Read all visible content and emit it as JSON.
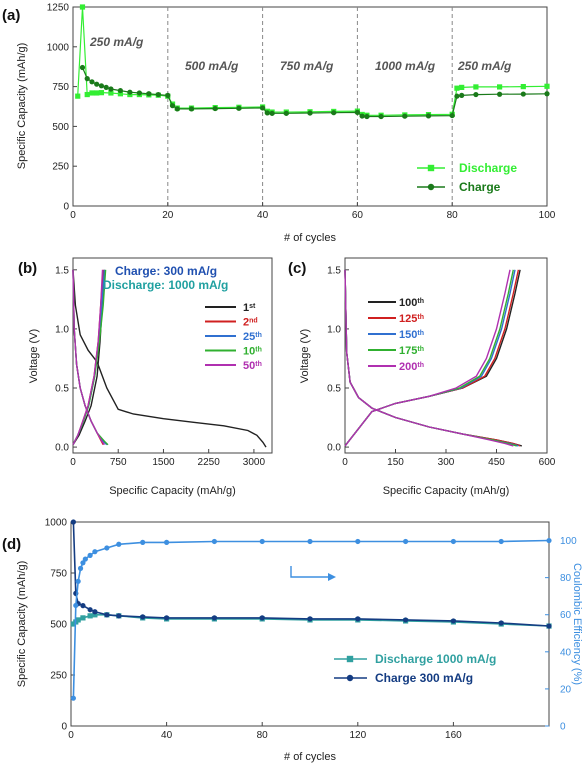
{
  "chart_data": [
    {
      "panel": "(a)",
      "type": "scatter",
      "xlabel": "# of cycles",
      "ylabel": "Specific Capacity (mAh/g)",
      "xlim": [
        0,
        100
      ],
      "ylim": [
        0,
        1250
      ],
      "xticks": [
        0,
        20,
        40,
        60,
        80,
        100
      ],
      "yticks": [
        0,
        250,
        500,
        750,
        1000,
        1250
      ],
      "legend": "bottom-right",
      "annotations": [
        "250 mA/g",
        "500 mA/g",
        "750 mA/g",
        "1000 mA/g",
        "250 mA/g"
      ],
      "dividers": [
        20,
        40,
        60,
        80
      ],
      "series": [
        {
          "name": "Discharge",
          "color": "#33ee33",
          "marker": "square",
          "x": [
            1,
            2,
            3,
            4,
            5,
            6,
            8,
            10,
            12,
            14,
            16,
            18,
            20,
            21,
            22,
            25,
            30,
            35,
            40,
            41,
            42,
            45,
            50,
            55,
            60,
            61,
            62,
            65,
            70,
            75,
            80,
            81,
            82,
            85,
            90,
            95,
            100
          ],
          "y": [
            690,
            1250,
            700,
            710,
            710,
            712,
            710,
            705,
            700,
            700,
            698,
            696,
            690,
            640,
            615,
            615,
            618,
            620,
            622,
            595,
            590,
            590,
            592,
            594,
            596,
            575,
            570,
            570,
            572,
            574,
            576,
            740,
            745,
            748,
            748,
            750,
            752
          ]
        },
        {
          "name": "Charge",
          "color": "#1a7a1a",
          "marker": "circle",
          "x": [
            2,
            3,
            4,
            5,
            6,
            7,
            8,
            10,
            12,
            14,
            16,
            18,
            20,
            21,
            22,
            25,
            30,
            35,
            40,
            41,
            42,
            45,
            50,
            55,
            60,
            61,
            62,
            65,
            70,
            75,
            80,
            81,
            82,
            85,
            90,
            95,
            100
          ],
          "y": [
            870,
            800,
            780,
            765,
            755,
            745,
            735,
            725,
            715,
            710,
            705,
            700,
            695,
            630,
            610,
            610,
            612,
            614,
            616,
            585,
            582,
            582,
            584,
            586,
            588,
            565,
            562,
            562,
            564,
            566,
            568,
            690,
            695,
            700,
            702,
            703,
            705
          ]
        }
      ]
    },
    {
      "panel": "(b)",
      "type": "line",
      "xlabel": "Specific Capacity (mAh/g)",
      "ylabel": "Voltage (V)",
      "xlim": [
        0,
        3300
      ],
      "ylim": [
        -0.05,
        1.6
      ],
      "xticks": [
        0,
        750,
        1500,
        2250,
        3000
      ],
      "yticks": [
        0.0,
        0.5,
        1.0,
        1.5
      ],
      "legend": "right",
      "header": [
        "Charge: 300 mA/g",
        "Discharge: 1000 mA/g"
      ],
      "header_colors": [
        "#2050b0",
        "#20a0a0"
      ],
      "series": [
        {
          "name": "1",
          "sup": "st",
          "color": "#222222",
          "discharge": {
            "x": [
              0,
              40,
              120,
              250,
              400,
              560,
              750,
              1000,
              1500,
              2000,
              2500,
              2900,
              3050,
              3150,
              3200
            ],
            "y": [
              1.5,
              1.2,
              0.95,
              0.82,
              0.72,
              0.5,
              0.32,
              0.28,
              0.24,
              0.21,
              0.18,
              0.14,
              0.1,
              0.04,
              0.0
            ]
          },
          "charge": {
            "x": [
              0,
              100,
              200,
              300,
              400,
              450,
              490,
              520
            ],
            "y": [
              0.02,
              0.1,
              0.22,
              0.35,
              0.6,
              0.9,
              1.25,
              1.5
            ]
          }
        },
        {
          "name": "2",
          "sup": "nd",
          "color": "#d02020",
          "discharge": {
            "x": [
              0,
              20,
              60,
              120,
              200,
              300,
              400,
              470,
              500
            ],
            "y": [
              1.5,
              1.0,
              0.7,
              0.5,
              0.35,
              0.22,
              0.12,
              0.05,
              0.02
            ]
          },
          "charge": {
            "x": [
              0,
              80,
              150,
              250,
              350,
              420,
              460,
              500
            ],
            "y": [
              0.02,
              0.1,
              0.2,
              0.35,
              0.6,
              0.9,
              1.2,
              1.5
            ]
          }
        },
        {
          "name": "25",
          "sup": "th",
          "color": "#3070d0",
          "discharge": {
            "x": [
              0,
              20,
              60,
              120,
              200,
              300,
              400,
              500,
              560
            ],
            "y": [
              1.5,
              1.0,
              0.7,
              0.5,
              0.35,
              0.22,
              0.12,
              0.05,
              0.02
            ]
          },
          "charge": {
            "x": [
              0,
              80,
              160,
              260,
              360,
              430,
              480,
              520
            ],
            "y": [
              0.02,
              0.1,
              0.2,
              0.35,
              0.6,
              0.9,
              1.2,
              1.5
            ]
          }
        },
        {
          "name": "10",
          "sup": "th",
          "color": "#30b030",
          "discharge": {
            "x": [
              0,
              20,
              60,
              120,
              200,
              300,
              400,
              520,
              580
            ],
            "y": [
              1.5,
              1.0,
              0.7,
              0.5,
              0.35,
              0.22,
              0.12,
              0.05,
              0.02
            ]
          },
          "charge": {
            "x": [
              0,
              80,
              160,
              260,
              360,
              440,
              500,
              540
            ],
            "y": [
              0.02,
              0.1,
              0.2,
              0.35,
              0.6,
              0.9,
              1.2,
              1.5
            ]
          }
        },
        {
          "name": "50",
          "sup": "th",
          "color": "#b030b0",
          "discharge": {
            "x": [
              0,
              20,
              60,
              120,
              200,
              300,
              400,
              480,
              520
            ],
            "y": [
              1.5,
              1.0,
              0.7,
              0.5,
              0.35,
              0.22,
              0.12,
              0.05,
              0.02
            ]
          },
          "charge": {
            "x": [
              0,
              80,
              150,
              250,
              350,
              420,
              460,
              490
            ],
            "y": [
              0.02,
              0.1,
              0.2,
              0.35,
              0.6,
              0.9,
              1.2,
              1.5
            ]
          }
        }
      ]
    },
    {
      "panel": "(c)",
      "type": "line",
      "xlabel": "Specific Capacity (mAh/g)",
      "ylabel": "Voltage (V)",
      "xlim": [
        0,
        600
      ],
      "ylim": [
        -0.05,
        1.6
      ],
      "xticks": [
        0,
        150,
        300,
        450,
        600
      ],
      "yticks": [
        0.0,
        0.5,
        1.0,
        1.5
      ],
      "legend": "left",
      "series": [
        {
          "name": "100",
          "sup": "th",
          "color": "#222222",
          "discharge": {
            "x": [
              0,
              5,
              15,
              40,
              80,
              150,
              250,
              350,
              450,
              500,
              525
            ],
            "y": [
              1.5,
              0.8,
              0.55,
              0.42,
              0.33,
              0.25,
              0.17,
              0.11,
              0.06,
              0.03,
              0.01
            ]
          },
          "charge": {
            "x": [
              0,
              80,
              150,
              250,
              350,
              420,
              450,
              480,
              505,
              520
            ],
            "y": [
              0.01,
              0.3,
              0.37,
              0.43,
              0.5,
              0.6,
              0.75,
              1.0,
              1.3,
              1.5
            ]
          }
        },
        {
          "name": "125",
          "sup": "th",
          "color": "#d02020",
          "discharge": {
            "x": [
              0,
              5,
              15,
              40,
              80,
              150,
              250,
              350,
              450,
              500,
              520
            ],
            "y": [
              1.5,
              0.8,
              0.55,
              0.42,
              0.33,
              0.25,
              0.17,
              0.11,
              0.06,
              0.03,
              0.01
            ]
          },
          "charge": {
            "x": [
              0,
              80,
              150,
              250,
              350,
              415,
              445,
              475,
              500,
              515
            ],
            "y": [
              0.01,
              0.3,
              0.37,
              0.43,
              0.5,
              0.6,
              0.75,
              1.0,
              1.3,
              1.5
            ]
          }
        },
        {
          "name": "150",
          "sup": "th",
          "color": "#3070d0",
          "discharge": {
            "x": [
              0,
              5,
              15,
              40,
              80,
              150,
              250,
              350,
              440,
              490,
              515
            ],
            "y": [
              1.5,
              0.8,
              0.55,
              0.42,
              0.33,
              0.25,
              0.17,
              0.11,
              0.06,
              0.03,
              0.01
            ]
          },
          "charge": {
            "x": [
              0,
              80,
              150,
              250,
              345,
              405,
              435,
              465,
              490,
              505
            ],
            "y": [
              0.01,
              0.3,
              0.37,
              0.43,
              0.5,
              0.6,
              0.75,
              1.0,
              1.3,
              1.5
            ]
          }
        },
        {
          "name": "175",
          "sup": "th",
          "color": "#30b030",
          "discharge": {
            "x": [
              0,
              5,
              15,
              40,
              80,
              150,
              250,
              350,
              440,
              485,
              510
            ],
            "y": [
              1.5,
              0.8,
              0.55,
              0.42,
              0.33,
              0.25,
              0.17,
              0.11,
              0.06,
              0.03,
              0.01
            ]
          },
          "charge": {
            "x": [
              0,
              80,
              150,
              250,
              340,
              400,
              430,
              460,
              485,
              500
            ],
            "y": [
              0.01,
              0.3,
              0.37,
              0.43,
              0.5,
              0.6,
              0.75,
              1.0,
              1.3,
              1.5
            ]
          }
        },
        {
          "name": "200",
          "sup": "th",
          "color": "#b030b0",
          "discharge": {
            "x": [
              0,
              5,
              15,
              40,
              80,
              150,
              250,
              350,
              430,
              475,
              500
            ],
            "y": [
              1.5,
              0.8,
              0.55,
              0.42,
              0.33,
              0.25,
              0.17,
              0.11,
              0.06,
              0.03,
              0.01
            ]
          },
          "charge": {
            "x": [
              0,
              80,
              150,
              250,
              330,
              390,
              420,
              450,
              475,
              490
            ],
            "y": [
              0.01,
              0.3,
              0.37,
              0.43,
              0.5,
              0.6,
              0.75,
              1.0,
              1.3,
              1.5
            ]
          }
        }
      ]
    },
    {
      "panel": "(d)",
      "type": "scatter",
      "xlabel": "# of cycles",
      "ylabel": "Specific Capacity (mAh/g)",
      "ylabel_right": "Coulombic Efficiency (%)",
      "xlim": [
        0,
        200
      ],
      "ylim": [
        0,
        1000
      ],
      "ylim_right": [
        0,
        110
      ],
      "xticks": [
        0,
        40,
        80,
        120,
        160
      ],
      "yticks": [
        0,
        250,
        500,
        750,
        1000
      ],
      "yticks_right": [
        0,
        20,
        40,
        60,
        80,
        100
      ],
      "legend": "bottom-right",
      "series": [
        {
          "name": "Discharge 1000 mA/g",
          "color": "#30a0a0",
          "marker": "square",
          "axis": "left",
          "x": [
            1,
            2,
            3,
            5,
            8,
            10,
            15,
            20,
            30,
            40,
            60,
            80,
            100,
            120,
            140,
            160,
            180,
            200
          ],
          "y": [
            500,
            510,
            520,
            530,
            540,
            545,
            545,
            540,
            530,
            525,
            525,
            525,
            520,
            520,
            515,
            510,
            500,
            490
          ]
        },
        {
          "name": "Charge 300 mA/g",
          "color": "#143c82",
          "marker": "circle",
          "axis": "left",
          "x": [
            1,
            2,
            3,
            5,
            8,
            10,
            15,
            20,
            30,
            40,
            60,
            80,
            100,
            120,
            140,
            160,
            180,
            200
          ],
          "y": [
            1000,
            650,
            600,
            590,
            570,
            560,
            545,
            540,
            535,
            530,
            530,
            530,
            525,
            525,
            520,
            515,
            505,
            490
          ]
        },
        {
          "name": "",
          "color": "#3d8fe0",
          "marker": "circle",
          "axis": "right",
          "x": [
            1,
            2,
            3,
            4,
            5,
            6,
            8,
            10,
            15,
            20,
            30,
            40,
            60,
            80,
            100,
            120,
            140,
            160,
            180,
            200
          ],
          "y": [
            15,
            65,
            78,
            85,
            88,
            90,
            92,
            94,
            96,
            98,
            99,
            99,
            99.5,
            99.5,
            99.5,
            99.5,
            99.5,
            99.5,
            99.5,
            100
          ]
        }
      ]
    }
  ]
}
